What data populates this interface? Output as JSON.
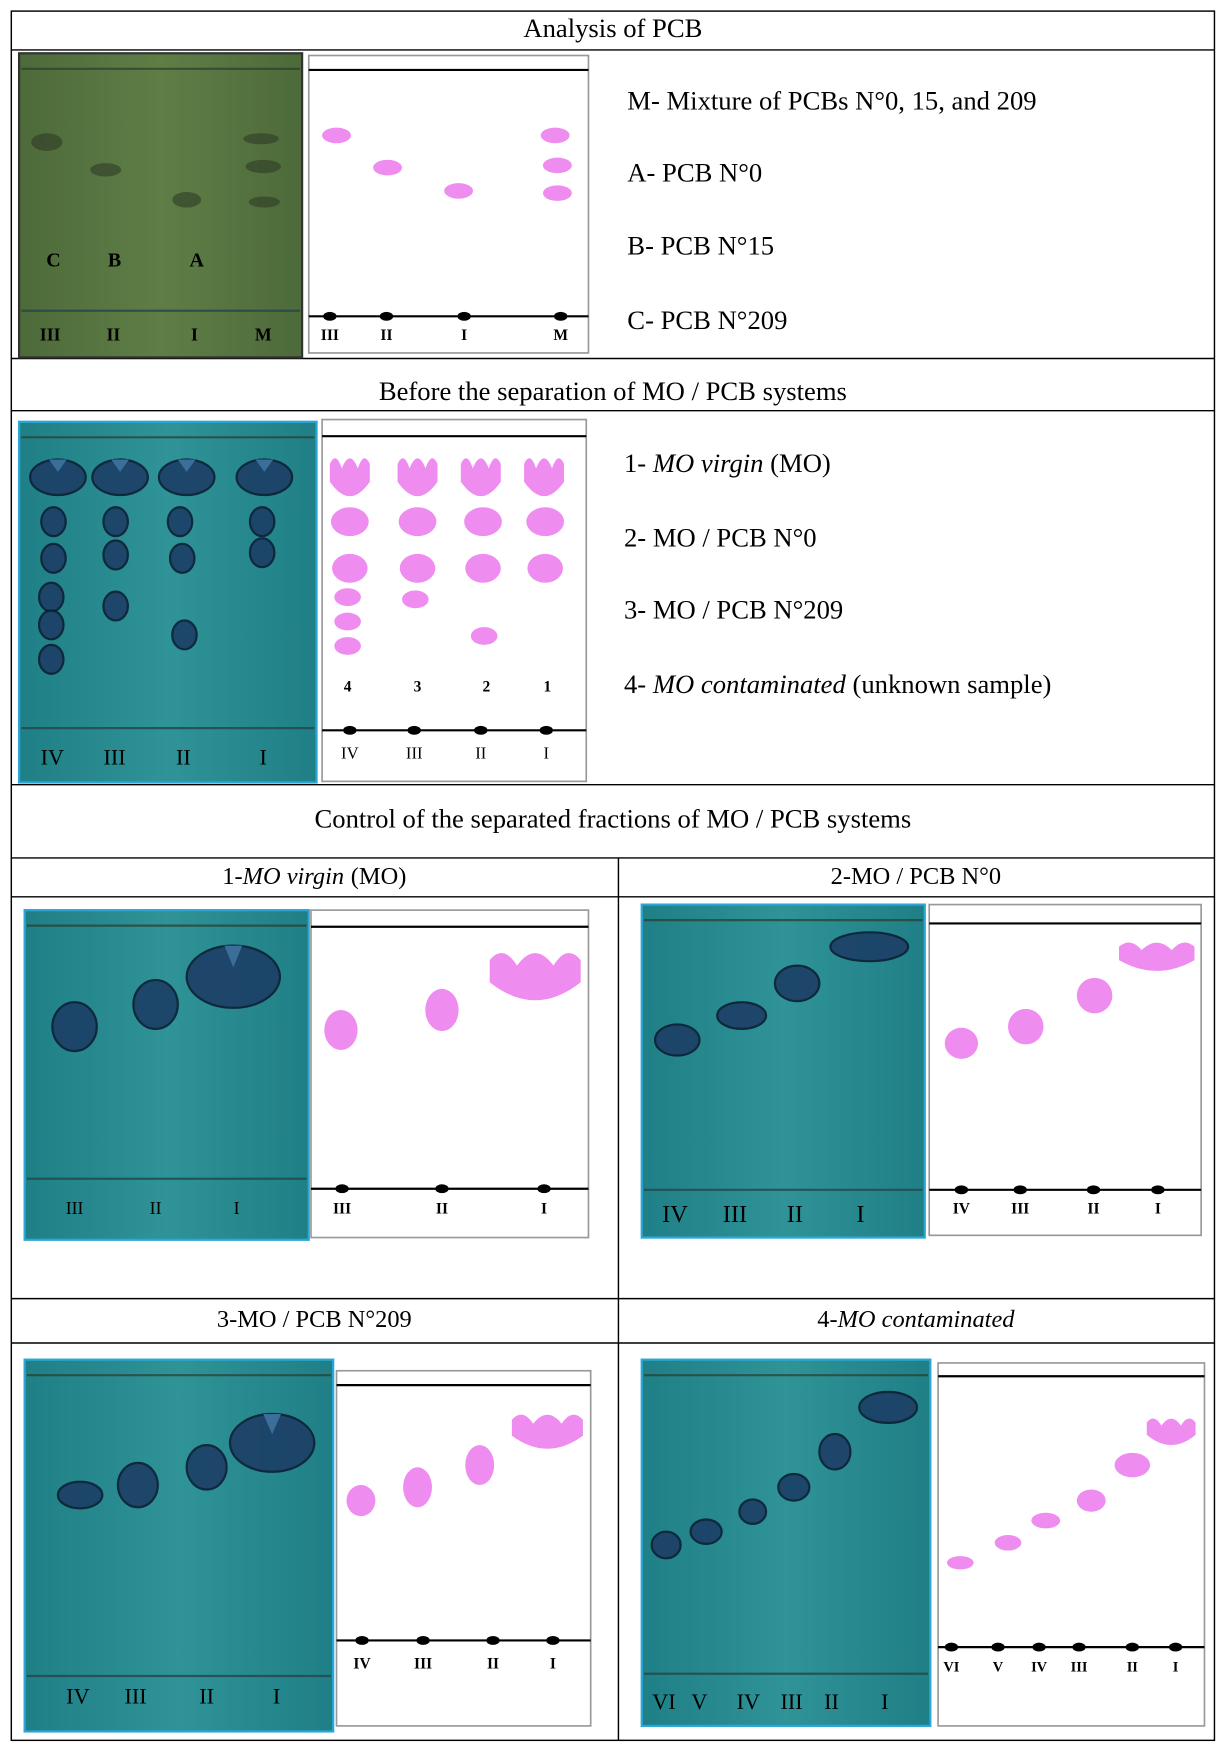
{
  "analysis": {
    "title": "Analysis of PCB",
    "photo_spot_labels": [
      "C",
      "B",
      "A"
    ],
    "photo_lanes": [
      "III",
      "II",
      "I",
      "M"
    ],
    "scheme_lanes": [
      "III",
      "II",
      "I",
      "M"
    ],
    "legend": [
      "M- Mixture of PCBs N°0, 15, and 209",
      "A- PCB N°0",
      "B- PCB N°15",
      "C- PCB N°209"
    ]
  },
  "before": {
    "title": "Before the separation of MO / PCB systems",
    "photo_lanes": [
      "IV",
      "III",
      "II",
      "I"
    ],
    "scheme_numbers": [
      "4",
      "3",
      "2",
      "1"
    ],
    "scheme_lanes": [
      "IV",
      "III",
      "II",
      "I"
    ],
    "legend": [
      {
        "number": "1-",
        "italic": "MO virgin",
        "text": "(MO)"
      },
      {
        "number": "2-",
        "text": "MO / PCB N°0"
      },
      {
        "number": "3-",
        "text": "MO / PCB N°209"
      },
      {
        "number": "4-",
        "italic": "MO contaminated",
        "text": "(unknown sample)"
      }
    ]
  },
  "control": {
    "title": "Control of the separated fractions of MO / PCB systems",
    "panels": [
      {
        "number": "1-",
        "italic": "MO virgin",
        "text": "(MO)",
        "photo_lanes": [
          "III",
          "II",
          "I"
        ],
        "scheme_lanes": [
          "III",
          "II",
          "I"
        ]
      },
      {
        "number": "2-",
        "text": "MO / PCB N°0",
        "photo_lanes": [
          "IV",
          "III",
          "II",
          "I"
        ],
        "scheme_lanes": [
          "IV",
          "III",
          "II",
          "I"
        ]
      },
      {
        "number": "3-",
        "text": "MO / PCB N°209",
        "photo_lanes": [
          "IV",
          "III",
          "II",
          "I"
        ],
        "scheme_lanes": [
          "IV",
          "III",
          "II",
          "I"
        ]
      },
      {
        "number": "4-",
        "italic": "MO contaminated",
        "photo_lanes": [
          "VI",
          "V",
          "IV",
          "III",
          "II",
          "I"
        ],
        "scheme_lanes": [
          "VI",
          "V",
          "IV",
          "III",
          "II",
          "I"
        ]
      }
    ]
  }
}
